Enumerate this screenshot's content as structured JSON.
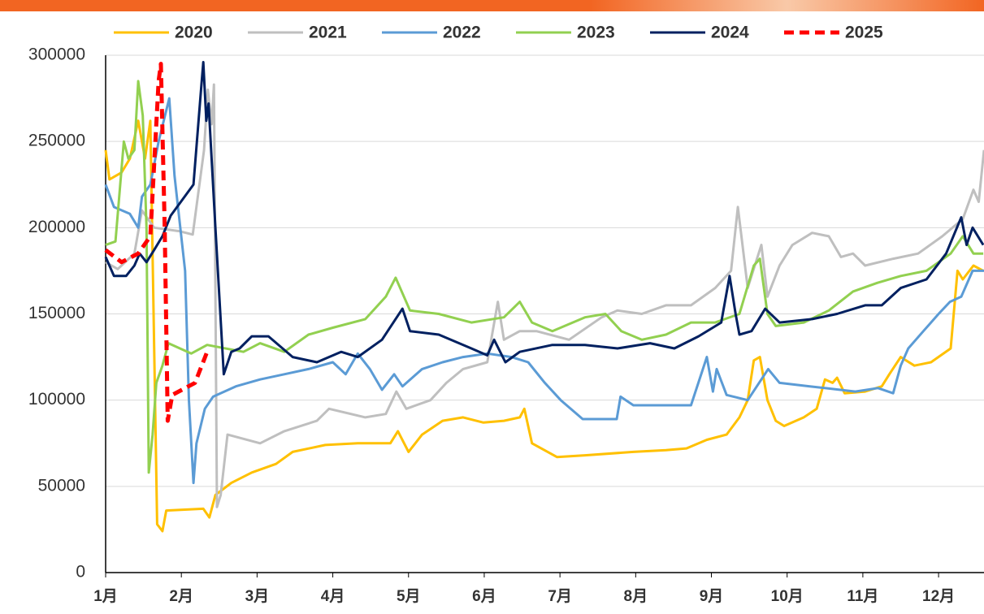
{
  "chart_data": {
    "type": "line",
    "xlim": [
      1,
      12.6
    ],
    "xticks": [
      {
        "value": 1,
        "label": "1月"
      },
      {
        "value": 2,
        "label": "2月"
      },
      {
        "value": 3,
        "label": "3月"
      },
      {
        "value": 4,
        "label": "4月"
      },
      {
        "value": 5,
        "label": "5月"
      },
      {
        "value": 6,
        "label": "6月"
      },
      {
        "value": 7,
        "label": "7月"
      },
      {
        "value": 8,
        "label": "8月"
      },
      {
        "value": 9,
        "label": "9月"
      },
      {
        "value": 10,
        "label": "10月"
      },
      {
        "value": 11,
        "label": "11月"
      },
      {
        "value": 12,
        "label": "12月"
      }
    ],
    "ylim": [
      0,
      300000
    ],
    "yticks": [
      0,
      50000,
      100000,
      150000,
      200000,
      250000,
      300000
    ],
    "grid": true,
    "legend": "top",
    "series": [
      {
        "name": "2020",
        "color": "#ffc000",
        "dash": false,
        "x": [
          1.0,
          1.05,
          1.21,
          1.32,
          1.43,
          1.52,
          1.59,
          1.68,
          1.75,
          1.8,
          2.29,
          2.37,
          2.45,
          2.66,
          2.93,
          3.25,
          3.47,
          3.9,
          4.33,
          4.76,
          4.86,
          5.0,
          5.18,
          5.45,
          5.72,
          5.99,
          6.26,
          6.47,
          6.53,
          6.63,
          6.96,
          7.33,
          7.97,
          8.4,
          8.67,
          8.94,
          9.2,
          9.37,
          9.48,
          9.56,
          9.64,
          9.74,
          9.85,
          9.96,
          10.22,
          10.39,
          10.5,
          10.6,
          10.66,
          10.76,
          11.03,
          11.25,
          11.35,
          11.5,
          11.68,
          11.9,
          12.16,
          12.25,
          12.32,
          12.46,
          12.59
        ],
        "values": [
          245000,
          228000,
          232000,
          240000,
          262000,
          240000,
          262000,
          28000,
          24000,
          36000,
          37000,
          32000,
          45000,
          52000,
          58000,
          63000,
          70000,
          74000,
          75000,
          75000,
          82000,
          70000,
          80000,
          88000,
          90000,
          87000,
          88000,
          90000,
          95000,
          75000,
          67000,
          68000,
          70000,
          71000,
          72000,
          77000,
          80000,
          90000,
          100000,
          123000,
          125000,
          100000,
          88000,
          85000,
          90000,
          95000,
          112000,
          110000,
          113000,
          104000,
          105000,
          108000,
          115000,
          125000,
          120000,
          122000,
          130000,
          175000,
          170000,
          178000,
          175000
        ]
      },
      {
        "name": "2021",
        "color": "#bfbfbf",
        "dash": false,
        "x": [
          1.0,
          1.16,
          1.38,
          1.48,
          1.64,
          1.97,
          2.15,
          2.3,
          2.35,
          2.4,
          2.43,
          2.47,
          2.52,
          2.61,
          3.04,
          3.36,
          3.79,
          3.95,
          4.43,
          4.7,
          4.84,
          4.97,
          5.29,
          5.5,
          5.72,
          6.04,
          6.18,
          6.26,
          6.47,
          6.69,
          7.12,
          7.55,
          7.76,
          8.08,
          8.4,
          8.73,
          9.05,
          9.26,
          9.35,
          9.48,
          9.66,
          9.74,
          9.9,
          10.07,
          10.33,
          10.55,
          10.71,
          10.87,
          11.03,
          11.4,
          11.73,
          12.05,
          12.32,
          12.46,
          12.53,
          12.6
        ],
        "values": [
          180000,
          176000,
          185000,
          210000,
          200000,
          198000,
          196000,
          245000,
          280000,
          260000,
          283000,
          38000,
          45000,
          80000,
          75000,
          82000,
          88000,
          95000,
          90000,
          92000,
          105000,
          95000,
          100000,
          110000,
          118000,
          122000,
          157000,
          135000,
          140000,
          140000,
          135000,
          148000,
          152000,
          150000,
          155000,
          155000,
          165000,
          175000,
          212000,
          165000,
          190000,
          160000,
          178000,
          190000,
          197000,
          195000,
          183000,
          185000,
          178000,
          182000,
          185000,
          195000,
          205000,
          222000,
          215000,
          245000
        ]
      },
      {
        "name": "2022",
        "color": "#5b9bd5",
        "dash": false,
        "x": [
          1.0,
          1.11,
          1.32,
          1.43,
          1.48,
          1.59,
          1.7,
          1.84,
          1.91,
          2.05,
          2.1,
          2.16,
          2.2,
          2.31,
          2.42,
          2.72,
          3.04,
          3.36,
          3.68,
          4.0,
          4.17,
          4.33,
          4.49,
          4.65,
          4.81,
          4.92,
          5.18,
          5.45,
          5.72,
          6.04,
          6.36,
          6.58,
          6.8,
          7.01,
          7.3,
          7.75,
          7.8,
          7.97,
          8.73,
          8.94,
          9.02,
          9.07,
          9.2,
          9.48,
          9.75,
          9.9,
          10.3,
          10.9,
          11.2,
          11.4,
          11.5,
          11.6,
          11.8,
          12.0,
          12.15,
          12.3,
          12.45,
          12.6
        ],
        "values": [
          225000,
          212000,
          208000,
          200000,
          218000,
          225000,
          250000,
          275000,
          230000,
          175000,
          100000,
          52000,
          75000,
          95000,
          102000,
          108000,
          112000,
          115000,
          118000,
          122000,
          115000,
          127000,
          118000,
          106000,
          115000,
          108000,
          118000,
          122000,
          125000,
          127000,
          125000,
          122000,
          110000,
          100000,
          89000,
          89000,
          102000,
          97000,
          97000,
          125000,
          105000,
          118000,
          103000,
          100000,
          118000,
          110000,
          108000,
          105000,
          107000,
          104000,
          120000,
          130000,
          140000,
          150000,
          157000,
          160000,
          175000,
          175000
        ]
      },
      {
        "name": "2023",
        "color": "#92d050",
        "dash": false,
        "x": [
          1.0,
          1.13,
          1.24,
          1.3,
          1.38,
          1.43,
          1.49,
          1.54,
          1.57,
          1.62,
          1.67,
          1.75,
          1.83,
          2.13,
          2.34,
          2.82,
          3.04,
          3.36,
          3.68,
          4.0,
          4.43,
          4.7,
          4.83,
          5.02,
          5.4,
          5.83,
          6.26,
          6.47,
          6.63,
          6.9,
          7.33,
          7.6,
          7.81,
          8.08,
          8.4,
          8.73,
          9.05,
          9.37,
          9.56,
          9.64,
          9.74,
          9.85,
          10.22,
          10.55,
          10.87,
          11.19,
          11.5,
          11.84,
          12.16,
          12.32,
          12.46,
          12.59
        ],
        "values": [
          190000,
          192000,
          250000,
          240000,
          245000,
          285000,
          265000,
          200000,
          58000,
          80000,
          110000,
          120000,
          133000,
          127000,
          132000,
          128000,
          133000,
          128000,
          138000,
          142000,
          147000,
          160000,
          171000,
          152000,
          150000,
          145000,
          148000,
          157000,
          145000,
          140000,
          148000,
          150000,
          140000,
          135000,
          138000,
          145000,
          145000,
          150000,
          178000,
          182000,
          150000,
          143000,
          145000,
          152000,
          163000,
          168000,
          172000,
          175000,
          185000,
          195000,
          185000,
          185000
        ]
      },
      {
        "name": "2024",
        "color": "#002060",
        "dash": false,
        "x": [
          1.0,
          1.11,
          1.27,
          1.38,
          1.45,
          1.54,
          1.64,
          1.75,
          1.86,
          2.16,
          2.26,
          2.29,
          2.33,
          2.36,
          2.45,
          2.56,
          2.66,
          2.77,
          2.93,
          3.15,
          3.47,
          3.79,
          4.11,
          4.33,
          4.65,
          4.92,
          5.02,
          5.4,
          5.83,
          6.04,
          6.13,
          6.28,
          6.47,
          6.9,
          7.33,
          7.76,
          8.19,
          8.51,
          8.83,
          9.13,
          9.24,
          9.32,
          9.37,
          9.53,
          9.71,
          9.9,
          10.33,
          10.66,
          11.03,
          11.25,
          11.5,
          11.84,
          12.1,
          12.3,
          12.37,
          12.45,
          12.59
        ],
        "values": [
          183000,
          172000,
          172000,
          178000,
          185000,
          180000,
          187000,
          195000,
          207000,
          225000,
          280000,
          296000,
          262000,
          272000,
          200000,
          115000,
          128000,
          130000,
          137000,
          137000,
          125000,
          122000,
          128000,
          125000,
          135000,
          153000,
          140000,
          138000,
          130000,
          126000,
          135000,
          122000,
          128000,
          132000,
          132000,
          130000,
          133000,
          130000,
          137000,
          145000,
          172000,
          150000,
          138000,
          140000,
          153000,
          145000,
          147000,
          150000,
          155000,
          155000,
          165000,
          170000,
          185000,
          206000,
          190000,
          200000,
          190000
        ]
      },
      {
        "name": "2025",
        "color": "#ff0000",
        "dash": true,
        "x": [
          1.0,
          1.21,
          1.43,
          1.59,
          1.7,
          1.73,
          1.78,
          1.82,
          1.88,
          2.18,
          2.34
        ],
        "values": [
          187000,
          180000,
          185000,
          195000,
          285000,
          295000,
          200000,
          88000,
          103000,
          110000,
          128000
        ]
      }
    ]
  }
}
